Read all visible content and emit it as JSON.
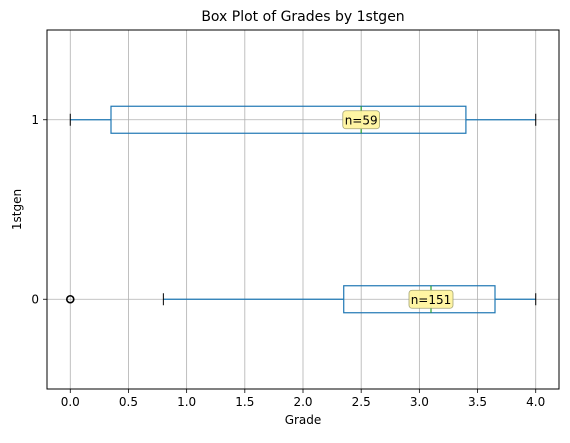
{
  "chart_data": {
    "type": "boxplot",
    "orientation": "horizontal",
    "title": "Box Plot of Grades by 1stgen",
    "xlabel": "Grade",
    "ylabel": "1stgen",
    "xlim": [
      -0.2,
      4.2
    ],
    "xticks": [
      "0.0",
      "0.5",
      "1.0",
      "1.5",
      "2.0",
      "2.5",
      "3.0",
      "3.5",
      "4.0"
    ],
    "categories": [
      "0",
      "1"
    ],
    "grid": true,
    "box_color": "#1f77b4",
    "median_color": "#2ca02c",
    "label_bg": "#fff5a0",
    "boxes": [
      {
        "category": "0",
        "whisker_low": 0.8,
        "q1": 2.35,
        "median": 3.1,
        "q3": 3.65,
        "whisker_high": 4.0,
        "outliers": [
          0.0
        ],
        "n_label": "n=151"
      },
      {
        "category": "1",
        "whisker_low": 0.0,
        "q1": 0.35,
        "median": 2.5,
        "q3": 3.4,
        "whisker_high": 4.0,
        "outliers": [],
        "n_label": "n=59"
      }
    ]
  }
}
